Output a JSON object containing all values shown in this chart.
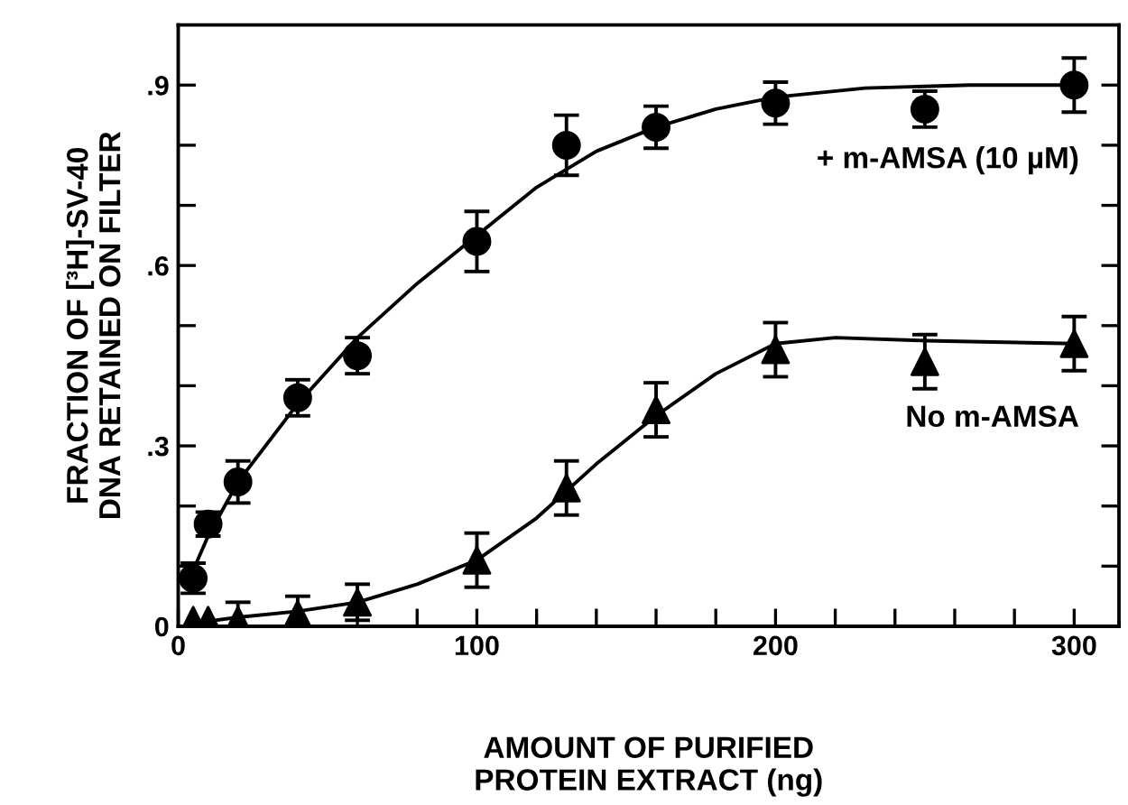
{
  "chart_data": {
    "type": "scatter",
    "xlabel": "AMOUNT OF PURIFIED\nPROTEIN EXTRACT (ng)",
    "ylabel": "FRACTION OF [³H]-SV-40\nDNA RETAINED ON FILTER",
    "xlim": [
      0,
      315
    ],
    "ylim": [
      0,
      1.0
    ],
    "xticks": [
      0,
      {
        "value": 20,
        "label": null
      },
      {
        "value": 40,
        "label": null
      },
      {
        "value": 60,
        "label": null
      },
      {
        "value": 80,
        "label": null
      },
      100,
      {
        "value": 120,
        "label": null
      },
      {
        "value": 140,
        "label": null
      },
      {
        "value": 160,
        "label": null
      },
      {
        "value": 180,
        "label": null
      },
      200,
      {
        "value": 220,
        "label": null
      },
      {
        "value": 240,
        "label": null
      },
      {
        "value": 260,
        "label": null
      },
      {
        "value": 280,
        "label": null
      },
      300
    ],
    "yticks": [
      0,
      {
        "value": 0.1,
        "label": null
      },
      {
        "value": 0.2,
        "label": null
      },
      {
        "value": 0.3,
        "label": ".3"
      },
      {
        "value": 0.4,
        "label": null
      },
      {
        "value": 0.5,
        "label": null
      },
      {
        "value": 0.6,
        "label": ".6"
      },
      {
        "value": 0.7,
        "label": null
      },
      {
        "value": 0.8,
        "label": null
      },
      {
        "value": 0.9,
        "label": ".9"
      }
    ],
    "grid": false,
    "series": [
      {
        "name": "+ m-AMSA (10 µM)",
        "marker": "circle",
        "color": "#000000",
        "x": [
          5,
          10,
          20,
          40,
          60,
          100,
          130,
          160,
          200,
          250,
          300
        ],
        "values": [
          0.08,
          0.17,
          0.24,
          0.38,
          0.45,
          0.64,
          0.8,
          0.83,
          0.87,
          0.86,
          0.9
        ],
        "errors": [
          0.025,
          0.02,
          0.035,
          0.03,
          0.03,
          0.05,
          0.05,
          0.035,
          0.035,
          0.03,
          0.045
        ]
      },
      {
        "name": "No m-AMSA",
        "marker": "triangle",
        "color": "#000000",
        "x": [
          5,
          10,
          20,
          40,
          60,
          100,
          130,
          160,
          200,
          250,
          300
        ],
        "values": [
          0.01,
          0.01,
          0.01,
          0.02,
          0.04,
          0.11,
          0.23,
          0.36,
          0.46,
          0.44,
          0.47
        ],
        "errors": [
          null,
          null,
          0.03,
          0.03,
          0.03,
          0.045,
          0.045,
          0.045,
          0.045,
          0.045,
          0.045
        ]
      },
      {
        "type": "line",
        "color": "#000000",
        "x": [
          3,
          10,
          20,
          40,
          60,
          80,
          100,
          120,
          140,
          160,
          180,
          200,
          230,
          265,
          300
        ],
        "values": [
          0.07,
          0.15,
          0.24,
          0.37,
          0.48,
          0.57,
          0.65,
          0.73,
          0.79,
          0.83,
          0.86,
          0.88,
          0.895,
          0.9,
          0.9
        ]
      },
      {
        "type": "line",
        "color": "#000000",
        "x": [
          5,
          20,
          40,
          60,
          80,
          100,
          120,
          140,
          160,
          180,
          200,
          220,
          250,
          300
        ],
        "values": [
          0.005,
          0.015,
          0.025,
          0.04,
          0.07,
          0.11,
          0.18,
          0.27,
          0.35,
          0.42,
          0.47,
          0.48,
          0.475,
          0.47
        ]
      }
    ]
  }
}
